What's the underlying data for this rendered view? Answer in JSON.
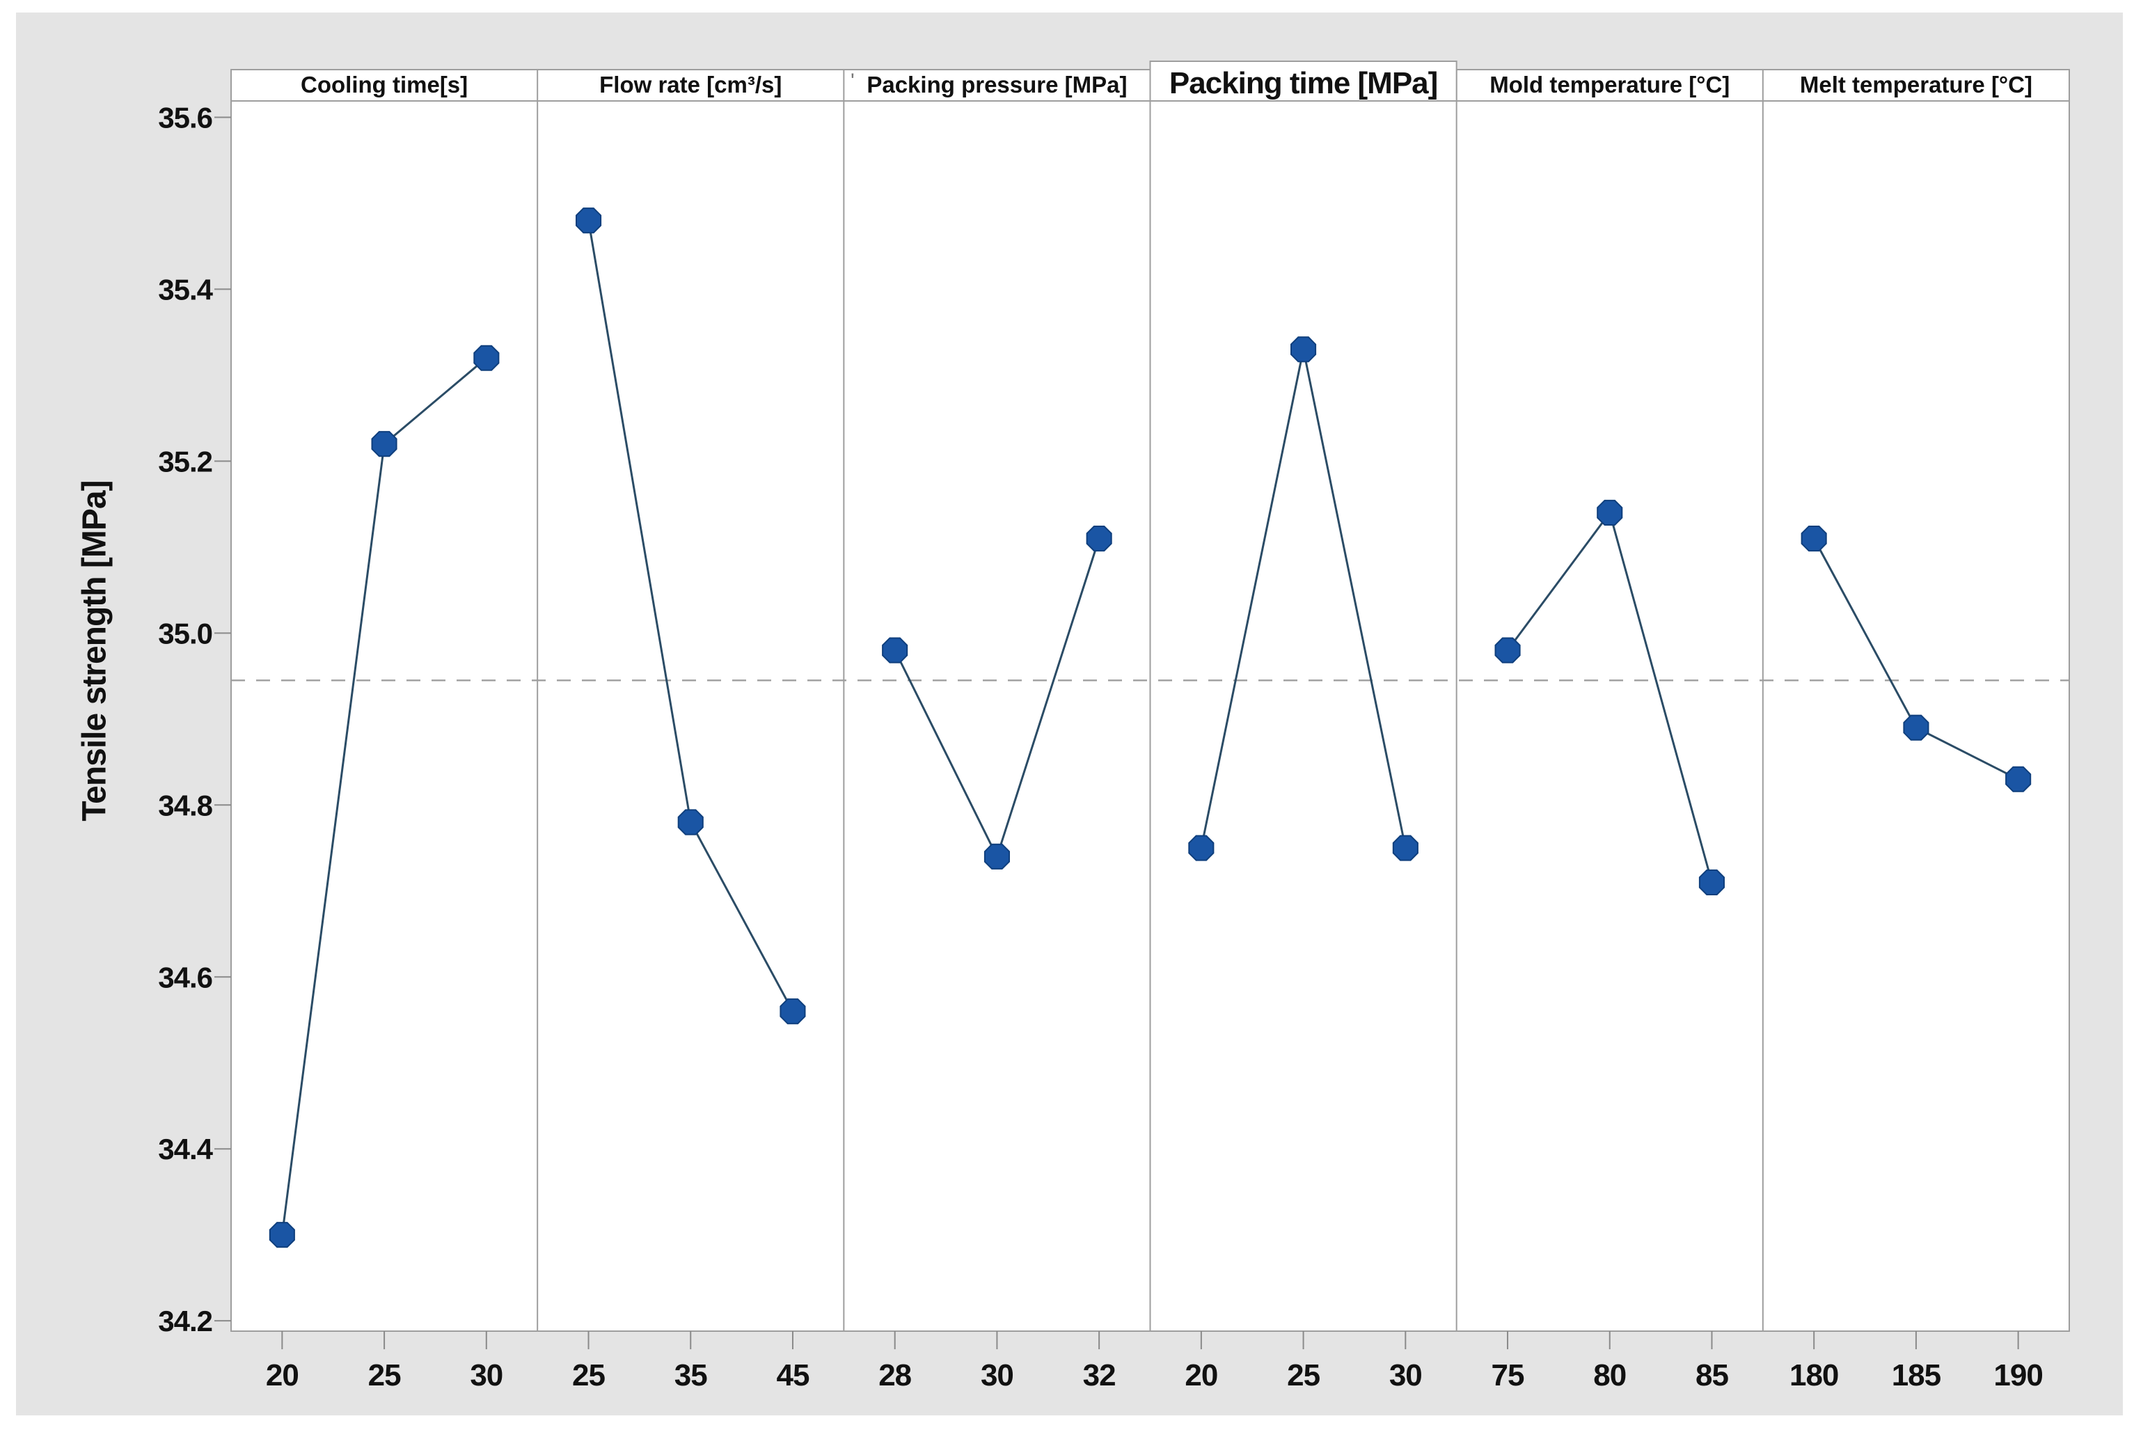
{
  "figure": {
    "background": "#e4e4e4",
    "page_background": "#ffffff"
  },
  "chart_data": {
    "type": "line",
    "subtype": "main-effects-panels",
    "ylabel": "Tensile strength [MPa]",
    "ylim": [
      34.19,
      35.62
    ],
    "yticks": [
      "34.2",
      "34.4",
      "34.6",
      "34.8",
      "35.0",
      "35.2",
      "35.4",
      "35.6"
    ],
    "reference_line": 34.945,
    "grid": false,
    "legend": null,
    "colors": {
      "marker_fill": "#1a55a4",
      "marker_edge": "#0f3f7d",
      "series_line": "#2b4c66",
      "reference_line": "#a3a3a3",
      "panel_border": "#9e9e9e",
      "tick_mark": "#8a8a8a",
      "text": "#111111",
      "panel_fill": "#ffffff"
    },
    "panels": [
      {
        "label": "Cooling time[s]",
        "categories": [
          "20",
          "25",
          "30"
        ],
        "values": [
          34.3,
          35.22,
          35.32
        ]
      },
      {
        "label": "Flow rate [cm³/s]",
        "categories": [
          "25",
          "35",
          "45"
        ],
        "values": [
          35.48,
          34.78,
          34.56
        ]
      },
      {
        "label": "Packing pressure [MPa]",
        "categories": [
          "28",
          "30",
          "32"
        ],
        "values": [
          34.98,
          34.74,
          35.11
        ]
      },
      {
        "label": "Packing time [MPa]",
        "categories": [
          "20",
          "25",
          "30"
        ],
        "values": [
          34.75,
          35.33,
          34.75
        ],
        "header_emphasized": true
      },
      {
        "label": "Mold temperature [°C]",
        "categories": [
          "75",
          "80",
          "85"
        ],
        "values": [
          34.98,
          35.14,
          34.71
        ]
      },
      {
        "label": "Melt temperature [°C]",
        "categories": [
          "180",
          "185",
          "190"
        ],
        "values": [
          35.11,
          34.89,
          34.83
        ]
      }
    ],
    "artifact_mark": "'"
  }
}
